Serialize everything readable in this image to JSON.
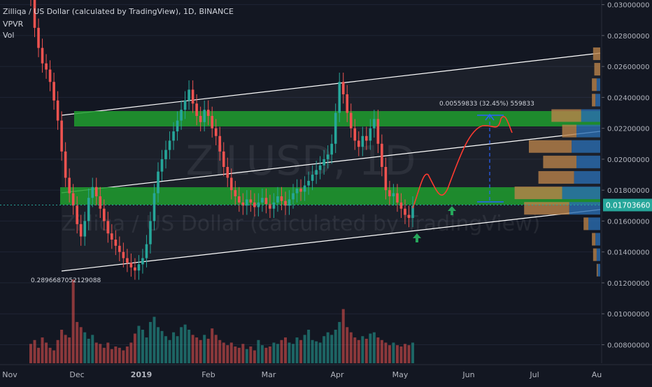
{
  "header": {
    "title": "Zilliqa / US Dollar (calculated by TradingView), 1D, BINANCE",
    "indicator_1": "VPVR",
    "indicator_2": "Vol"
  },
  "watermark": {
    "symbol": "ZILUSD, 1D",
    "name": "Zilliqa / US Dollar (calculated by TradingView)"
  },
  "colors": {
    "background": "#131722",
    "up": "#26a69a",
    "down": "#ef5350",
    "zone": "#1e9e2e",
    "channel": "#ffffff",
    "projection": "#ff3b30",
    "arrow": "#26a65b",
    "price_badge": "#26a69a",
    "vpvr_up": "#2a6db0",
    "vpvr_down": "#b9824a"
  },
  "annotations": {
    "measure_label": "0.00559833 (32.45%) 559833",
    "ratio_label": "0.2896687052129088"
  },
  "chart_data": {
    "type": "candlestick",
    "title": "Zilliqa / US Dollar (calculated by TradingView), 1D, BINANCE",
    "x_ticks": [
      "Nov",
      "Dec",
      "2019",
      "Feb",
      "Mar",
      "Apr",
      "May",
      "Jun",
      "Jul",
      "Au"
    ],
    "y_ticks": [
      "0.03000000",
      "0.02800000",
      "0.02600000",
      "0.02400000",
      "0.02200000",
      "0.02000000",
      "0.01800000",
      "0.01600000",
      "0.01400000",
      "0.01200000",
      "0.01000000",
      "0.00800000"
    ],
    "ylim": [
      0.0068,
      0.0303
    ],
    "current_price": "0.01703660",
    "close_series": [
      0.0305,
      0.0285,
      0.0272,
      0.0262,
      0.0258,
      0.025,
      0.0238,
      0.0225,
      0.0205,
      0.0188,
      0.0178,
      0.017,
      0.0158,
      0.015,
      0.016,
      0.0175,
      0.0182,
      0.0176,
      0.0168,
      0.016,
      0.0152,
      0.0148,
      0.0144,
      0.014,
      0.0136,
      0.0133,
      0.013,
      0.0128,
      0.0132,
      0.0136,
      0.0145,
      0.016,
      0.0178,
      0.0192,
      0.02,
      0.0206,
      0.0212,
      0.0218,
      0.0225,
      0.0232,
      0.0238,
      0.0245,
      0.0236,
      0.0228,
      0.0224,
      0.0232,
      0.0228,
      0.022,
      0.0215,
      0.0205,
      0.0195,
      0.0188,
      0.018,
      0.0176,
      0.0172,
      0.017,
      0.0174,
      0.0172,
      0.0169,
      0.0172,
      0.0175,
      0.0171,
      0.0168,
      0.0172,
      0.0176,
      0.0173,
      0.017,
      0.0174,
      0.0178,
      0.0181,
      0.0179,
      0.0183,
      0.0186,
      0.019,
      0.0193,
      0.0196,
      0.02,
      0.0203,
      0.021,
      0.023,
      0.025,
      0.0242,
      0.023,
      0.022,
      0.0212,
      0.0208,
      0.0215,
      0.0212,
      0.022,
      0.0226,
      0.021,
      0.0195,
      0.018,
      0.0176,
      0.0178,
      0.0172,
      0.0168,
      0.0164,
      0.0162,
      0.017
    ],
    "volume": [
      1.5,
      1.8,
      1.2,
      2.0,
      1.6,
      1.2,
      1.0,
      1.8,
      2.6,
      2.2,
      2.0,
      6.5,
      3.2,
      2.8,
      2.4,
      1.9,
      2.2,
      1.6,
      1.5,
      1.2,
      1.6,
      1.1,
      1.3,
      1.2,
      1.0,
      1.3,
      1.6,
      2.3,
      2.9,
      2.6,
      2.0,
      3.2,
      3.6,
      2.8,
      2.5,
      2.1,
      1.8,
      2.4,
      2.1,
      2.8,
      3.0,
      2.6,
      2.2,
      2.0,
      1.8,
      2.2,
      1.9,
      2.7,
      2.2,
      1.8,
      1.6,
      1.4,
      1.6,
      1.3,
      1.2,
      1.5,
      1.1,
      1.3,
      1.0,
      1.8,
      1.4,
      1.2,
      1.3,
      1.6,
      1.5,
      1.8,
      2.0,
      1.6,
      1.5,
      2.0,
      1.8,
      2.2,
      2.6,
      1.8,
      1.7,
      1.6,
      2.1,
      2.4,
      2.2,
      2.6,
      3.2,
      4.2,
      2.8,
      2.4,
      2.0,
      1.8,
      2.1,
      1.9,
      2.3,
      2.4,
      2.0,
      1.8,
      1.6,
      1.4,
      1.6,
      1.4,
      1.3,
      1.5,
      1.4,
      1.6
    ],
    "vpvr_profile": [
      {
        "price": 0.0268,
        "up": 0.0,
        "down": 0.6
      },
      {
        "price": 0.0258,
        "up": 0.0,
        "down": 0.5
      },
      {
        "price": 0.0248,
        "up": 0.3,
        "down": 0.4
      },
      {
        "price": 0.0238,
        "up": 0.4,
        "down": 0.3
      },
      {
        "price": 0.0228,
        "up": 1.6,
        "down": 2.5
      },
      {
        "price": 0.0218,
        "up": 2.0,
        "down": 1.2
      },
      {
        "price": 0.0208,
        "up": 2.4,
        "down": 3.6
      },
      {
        "price": 0.0198,
        "up": 2.0,
        "down": 2.8
      },
      {
        "price": 0.0188,
        "up": 2.2,
        "down": 3.0
      },
      {
        "price": 0.0178,
        "up": 3.2,
        "down": 4.0
      },
      {
        "price": 0.0168,
        "up": 2.6,
        "down": 3.8
      },
      {
        "price": 0.0158,
        "up": 1.0,
        "down": 0.4
      },
      {
        "price": 0.0148,
        "up": 0.4,
        "down": 0.3
      },
      {
        "price": 0.0138,
        "up": 0.3,
        "down": 0.3
      },
      {
        "price": 0.0128,
        "up": 0.2,
        "down": 0.1
      }
    ]
  }
}
